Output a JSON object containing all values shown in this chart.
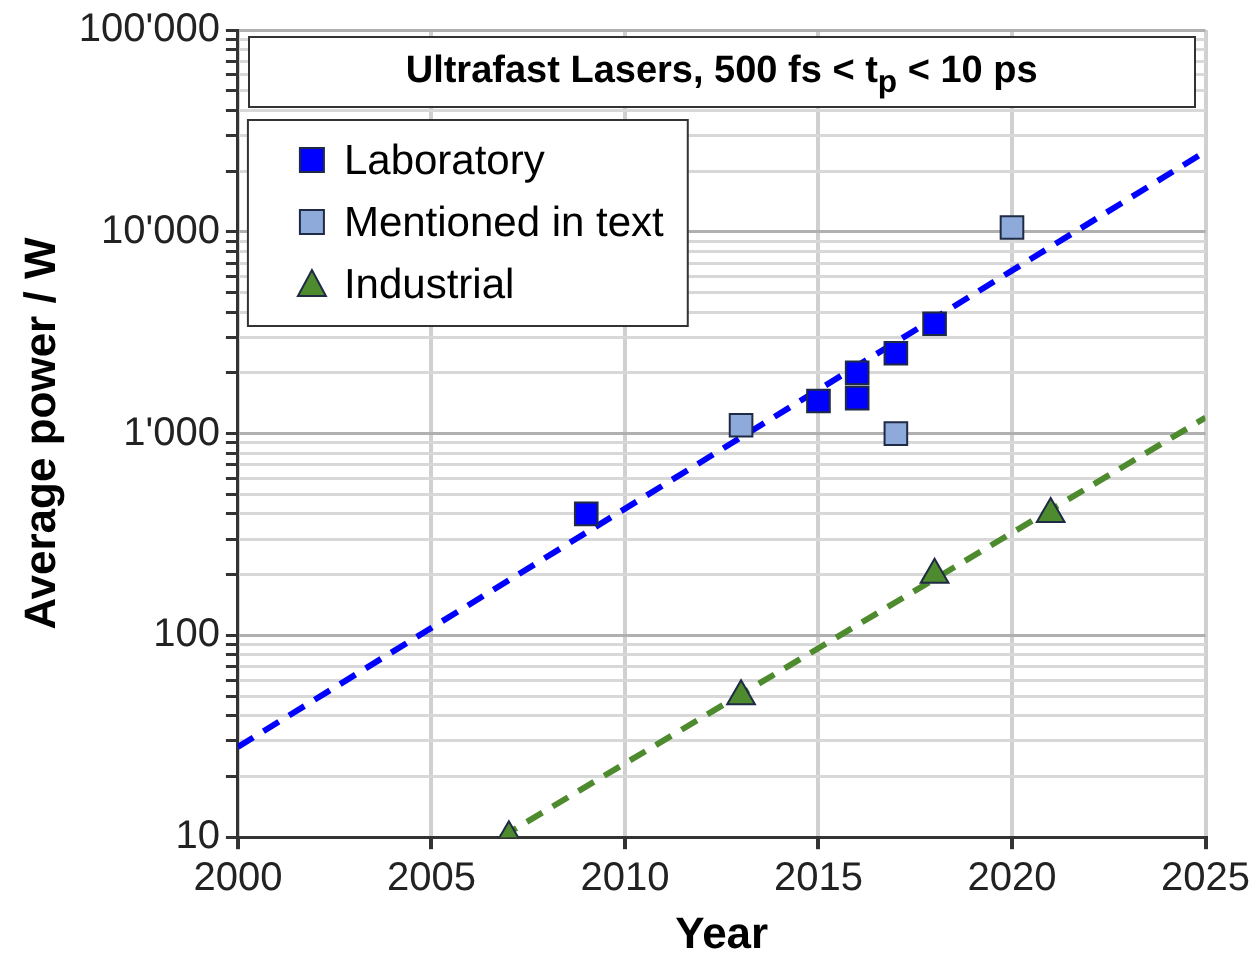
{
  "chart_data": {
    "type": "scatter",
    "title": "Ultrafast Lasers, 500 fs < t$_{p}$ < 10 ps",
    "xlabel": "Year",
    "ylabel": "Average power / W",
    "series": [
      {
        "name": "Laboratory",
        "color": "#0000ff",
        "marker": "square",
        "x": [
          2009,
          2015,
          2016,
          2016,
          2017,
          2018
        ],
        "values": [
          400,
          1450,
          1500,
          2000,
          2500,
          3500
        ]
      },
      {
        "name": "Mentioned in text",
        "color": "#8eaadb",
        "marker": "square",
        "x": [
          2013,
          2017,
          2020
        ],
        "values": [
          1100,
          1000,
          10500
        ]
      },
      {
        "name": "Industrial",
        "color": "#4e8a2e",
        "marker": "triangle",
        "x": [
          2007,
          2013,
          2018,
          2021
        ],
        "values": [
          10,
          50,
          200,
          400
        ]
      },
      {
        "type": "line",
        "color": "#0000ff",
        "line_style": "dashed",
        "marker": "none",
        "x": [
          2000,
          2025
        ],
        "values": [
          28,
          25000
        ]
      },
      {
        "type": "line",
        "color": "#4e8a2e",
        "line_style": "dashed",
        "marker": "none",
        "x": [
          2006.8,
          2025
        ],
        "values": [
          10,
          1200
        ]
      }
    ],
    "log": "y",
    "xlim": [
      2000,
      2025
    ],
    "xticks": [
      2000,
      2005,
      2010,
      2015,
      2020,
      2025
    ],
    "ylim": [
      10,
      100000
    ],
    "yticks": [
      {
        "value": 10,
        "label": "10"
      },
      {
        "value": 20,
        "label": null
      },
      {
        "value": 30,
        "label": null
      },
      {
        "value": 40,
        "label": null
      },
      {
        "value": 50,
        "label": null
      },
      {
        "value": 60,
        "label": null
      },
      {
        "value": 70,
        "label": null
      },
      {
        "value": 80,
        "label": null
      },
      {
        "value": 90,
        "label": null
      },
      {
        "value": 100,
        "label": "100"
      },
      {
        "value": 200,
        "label": null
      },
      {
        "value": 300,
        "label": null
      },
      {
        "value": 400,
        "label": null
      },
      {
        "value": 500,
        "label": null
      },
      {
        "value": 600,
        "label": null
      },
      {
        "value": 700,
        "label": null
      },
      {
        "value": 800,
        "label": null
      },
      {
        "value": 900,
        "label": null
      },
      {
        "value": 1000,
        "label": "1'000"
      },
      {
        "value": 2000,
        "label": null
      },
      {
        "value": 3000,
        "label": null
      },
      {
        "value": 4000,
        "label": null
      },
      {
        "value": 5000,
        "label": null
      },
      {
        "value": 6000,
        "label": null
      },
      {
        "value": 7000,
        "label": null
      },
      {
        "value": 8000,
        "label": null
      },
      {
        "value": 9000,
        "label": null
      },
      {
        "value": 10000,
        "label": "10'000"
      },
      {
        "value": 20000,
        "label": null
      },
      {
        "value": 30000,
        "label": null
      },
      {
        "value": 40000,
        "label": null
      },
      {
        "value": 50000,
        "label": null
      },
      {
        "value": 60000,
        "label": null
      },
      {
        "value": 70000,
        "label": null
      },
      {
        "value": 80000,
        "label": null
      },
      {
        "value": 90000,
        "label": null
      },
      {
        "value": 100000,
        "label": "100'000"
      }
    ],
    "grid": true,
    "legend": "top left"
  }
}
